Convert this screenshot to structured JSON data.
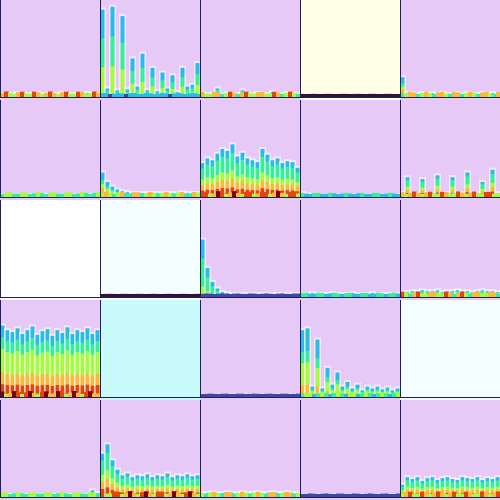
{
  "chart_data": {
    "type": "heatmap",
    "rows": 5,
    "cols": 5,
    "colormap": [
      "#30123b",
      "#4145ab",
      "#28bceb",
      "#32f298",
      "#a4fc3c",
      "#fbb938",
      "#e4460a",
      "#7a0403"
    ],
    "panels": [
      {
        "background": "#e6c9f7",
        "peaks": [
          2,
          2,
          2,
          3,
          2,
          2,
          2,
          3,
          2,
          2,
          2,
          2,
          3,
          2,
          2,
          2,
          2,
          3,
          2,
          2
        ],
        "band_intensity": 0.85
      },
      {
        "background": "#e6c9f7",
        "peaks": [
          92,
          8,
          95,
          6,
          85,
          7,
          40,
          10,
          45,
          6,
          30,
          5,
          25,
          8,
          22,
          4,
          30,
          10,
          12,
          35
        ],
        "band_intensity": 0.35
      },
      {
        "background": "#e6c9f7",
        "peaks": [
          3,
          2,
          2,
          8,
          2,
          3,
          2,
          2,
          6,
          2,
          2,
          3,
          2,
          2,
          4,
          2,
          2,
          3,
          2,
          2
        ],
        "band_intensity": 0.8
      },
      {
        "background": "#ffffe6",
        "peaks": [
          0,
          0,
          0,
          0,
          0,
          0,
          0,
          0,
          0,
          0,
          0,
          0,
          0,
          0,
          0,
          0,
          0,
          0,
          0,
          0
        ],
        "band_intensity": 0.05
      },
      {
        "background": "#e6c9f7",
        "peaks": [
          20,
          3,
          3,
          2,
          3,
          2,
          3,
          2,
          3,
          2,
          2,
          3,
          2,
          3,
          2,
          2,
          3,
          2,
          3,
          2
        ],
        "band_intensity": 0.75
      },
      {
        "background": "#e6c9f7",
        "peaks": [
          1,
          1,
          1,
          1,
          1,
          1,
          1,
          1,
          1,
          1,
          1,
          1,
          1,
          1,
          1,
          1,
          1,
          1,
          1,
          1
        ],
        "band_intensity": 0.6
      },
      {
        "background": "#e6c9f7",
        "peaks": [
          25,
          15,
          10,
          7,
          5,
          4,
          3,
          3,
          3,
          3,
          3,
          3,
          3,
          3,
          3,
          3,
          4,
          3,
          3,
          3
        ],
        "band_intensity": 0.7
      },
      {
        "background": "#e6c9f7",
        "peaks": [
          35,
          40,
          38,
          45,
          50,
          48,
          55,
          42,
          46,
          40,
          38,
          36,
          50,
          44,
          38,
          40,
          35,
          37,
          36,
          30
        ],
        "band_intensity": 0.95
      },
      {
        "background": "#e6c9f7",
        "peaks": [
          3,
          2,
          1,
          1,
          1,
          1,
          1,
          1,
          1,
          1,
          1,
          1,
          1,
          1,
          1,
          1,
          1,
          1,
          1,
          1
        ],
        "band_intensity": 0.4
      },
      {
        "background": "#e6c9f7",
        "peaks": [
          3,
          20,
          3,
          2,
          18,
          3,
          3,
          22,
          3,
          3,
          20,
          3,
          3,
          25,
          3,
          3,
          15,
          3,
          28,
          3
        ],
        "band_intensity": 0.85
      },
      {
        "background": "#ffffff",
        "peaks": [
          0,
          0,
          0,
          0,
          0,
          0,
          0,
          0,
          0,
          0,
          0,
          0,
          0,
          0,
          0,
          0,
          0,
          0,
          0,
          0
        ],
        "band_intensity": 0.0
      },
      {
        "background": "#f4fdff",
        "peaks": [
          0,
          0,
          0,
          0,
          0,
          0,
          0,
          0,
          0,
          0,
          0,
          0,
          0,
          0,
          0,
          0,
          0,
          0,
          0,
          0
        ],
        "band_intensity": 0.05
      },
      {
        "background": "#e6c9f7",
        "peaks": [
          60,
          30,
          15,
          8,
          4,
          3,
          2,
          2,
          2,
          2,
          2,
          2,
          2,
          2,
          2,
          2,
          2,
          2,
          2,
          2
        ],
        "band_intensity": 0.2
      },
      {
        "background": "#e6c9f7",
        "peaks": [
          2,
          2,
          3,
          2,
          2,
          2,
          3,
          2,
          2,
          2,
          3,
          2,
          2,
          2,
          3,
          2,
          2,
          2,
          2,
          2
        ],
        "band_intensity": 0.45
      },
      {
        "background": "#e6c9f7",
        "peaks": [
          4,
          4,
          5,
          5,
          6,
          5,
          5,
          6,
          4,
          5,
          5,
          6,
          5,
          5,
          4,
          5,
          6,
          5,
          5,
          4
        ],
        "band_intensity": 0.8
      },
      {
        "background": "#e6c9f7",
        "peaks": [
          75,
          70,
          68,
          72,
          66,
          70,
          74,
          65,
          69,
          71,
          64,
          70,
          67,
          73,
          66,
          70,
          68,
          72,
          66,
          70
        ],
        "band_intensity": 1.0
      },
      {
        "background": "#c9fafc",
        "peaks": [
          0,
          0,
          0,
          0,
          0,
          0,
          0,
          0,
          0,
          0,
          0,
          0,
          0,
          0,
          0,
          0,
          0,
          0,
          0,
          0
        ],
        "band_intensity": 0.0
      },
      {
        "background": "#e6c9f7",
        "peaks": [
          1,
          1,
          1,
          1,
          1,
          1,
          1,
          1,
          1,
          1,
          1,
          1,
          1,
          1,
          1,
          1,
          1,
          1,
          1,
          1
        ],
        "band_intensity": 0.15
      },
      {
        "background": "#e6c9f7",
        "peaks": [
          70,
          72,
          10,
          60,
          8,
          30,
          12,
          25,
          10,
          15,
          8,
          12,
          6,
          10,
          8,
          10,
          7,
          9,
          6,
          8
        ],
        "band_intensity": 0.55
      },
      {
        "background": "#f4fdff",
        "peaks": [
          0,
          0,
          0,
          0,
          0,
          0,
          0,
          0,
          0,
          0,
          0,
          0,
          0,
          0,
          0,
          0,
          0,
          0,
          0,
          0
        ],
        "band_intensity": 0.0
      },
      {
        "background": "#e6c9f7",
        "peaks": [
          1,
          1,
          1,
          1,
          1,
          1,
          1,
          1,
          1,
          1,
          1,
          1,
          1,
          1,
          1,
          1,
          1,
          1,
          6,
          3
        ],
        "band_intensity": 0.6
      },
      {
        "background": "#e6c9f7",
        "peaks": [
          45,
          55,
          38,
          28,
          22,
          24,
          20,
          22,
          21,
          23,
          20,
          22,
          21,
          24,
          20,
          22,
          21,
          23,
          21,
          22
        ],
        "band_intensity": 0.95
      },
      {
        "background": "#e6c9f7",
        "peaks": [
          3,
          3,
          4,
          3,
          3,
          4,
          3,
          3,
          4,
          3,
          3,
          4,
          3,
          3,
          4,
          3,
          3,
          4,
          3,
          3
        ],
        "band_intensity": 0.75
      },
      {
        "background": "#e6c9f7",
        "peaks": [
          1,
          1,
          1,
          1,
          1,
          1,
          1,
          1,
          1,
          1,
          1,
          1,
          1,
          1,
          1,
          1,
          1,
          1,
          1,
          1
        ],
        "band_intensity": 0.2
      },
      {
        "background": "#e6c9f7",
        "peaks": [
          12,
          20,
          18,
          20,
          16,
          19,
          20,
          17,
          19,
          20,
          18,
          17,
          20,
          19,
          18,
          20,
          17,
          19,
          18,
          20
        ],
        "band_intensity": 0.85
      }
    ]
  }
}
